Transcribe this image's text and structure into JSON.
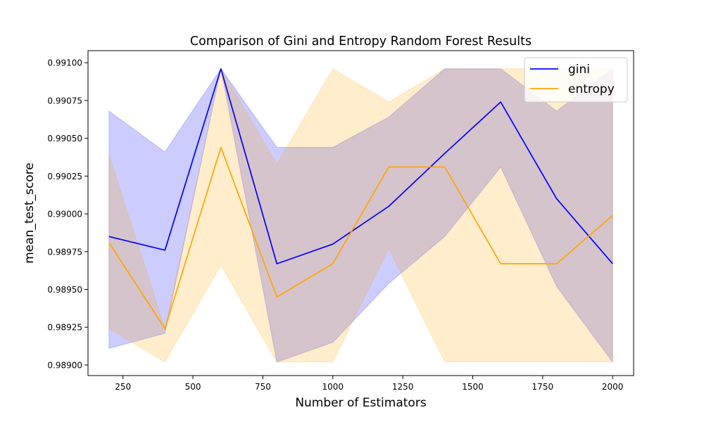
{
  "chart_data": {
    "type": "line",
    "title": "Comparison of Gini and Entropy Random Forest Results",
    "xlabel": "Number of Estimators",
    "ylabel": "mean_test_score",
    "x": [
      200,
      400,
      600,
      800,
      1000,
      1200,
      1400,
      1600,
      1800,
      2000
    ],
    "xlim": [
      125,
      2075
    ],
    "ylim": [
      0.98893,
      0.99108
    ],
    "xticks": [
      250,
      500,
      750,
      1000,
      1250,
      1500,
      1750,
      2000
    ],
    "yticks": [
      "0.98900",
      "0.98925",
      "0.98950",
      "0.98975",
      "0.99000",
      "0.99025",
      "0.99050",
      "0.99075",
      "0.99100"
    ],
    "legend_position": "top-right",
    "grid": false,
    "series": [
      {
        "name": "gini",
        "color": "#0000ff",
        "values": [
          0.98985,
          0.98976,
          0.99096,
          0.98967,
          0.9898,
          0.99005,
          0.9904,
          0.99074,
          0.9901,
          0.98967
        ],
        "upper": [
          0.99068,
          0.99041,
          0.99096,
          0.99044,
          0.99044,
          0.99064,
          0.99096,
          0.99096,
          0.99068,
          0.99096
        ],
        "lower": [
          0.98911,
          0.98921,
          0.99096,
          0.98902,
          0.98915,
          0.98954,
          0.98985,
          0.99031,
          0.98952,
          0.98902
        ]
      },
      {
        "name": "entropy",
        "color": "#ffa500",
        "values": [
          0.98981,
          0.98924,
          0.99044,
          0.98945,
          0.98967,
          0.99031,
          0.99031,
          0.98967,
          0.98967,
          0.98999
        ],
        "upper": [
          0.99039,
          0.98924,
          0.99096,
          0.99033,
          0.99096,
          0.99074,
          0.99096,
          0.99096,
          0.99096,
          0.99096
        ],
        "lower": [
          0.98924,
          0.98902,
          0.98966,
          0.98902,
          0.98902,
          0.98977,
          0.98902,
          0.98902,
          0.98902,
          0.98902
        ]
      }
    ]
  }
}
